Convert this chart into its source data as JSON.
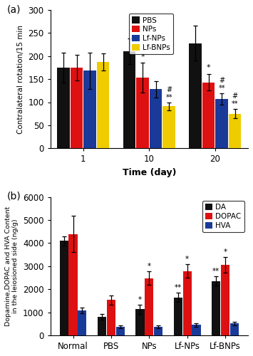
{
  "panel_a": {
    "title": "(a)",
    "groups": [
      "1",
      "10",
      "20"
    ],
    "xlabel": "Time (day)",
    "ylabel": "Contralateral rotation/15 min",
    "ylim": [
      0,
      300
    ],
    "yticks": [
      0,
      50,
      100,
      150,
      200,
      250,
      300
    ],
    "legend_labels": [
      "PBS",
      "NPs",
      "Lf-NPs",
      "Lf-BNPs"
    ],
    "bar_colors": [
      "#111111",
      "#dd1111",
      "#1a3a99",
      "#eecc00"
    ],
    "bar_values": [
      [
        175,
        175,
        168,
        187
      ],
      [
        210,
        153,
        128,
        91
      ],
      [
        228,
        143,
        107,
        75
      ]
    ],
    "bar_errors": [
      [
        33,
        28,
        40,
        18
      ],
      [
        28,
        32,
        18,
        8
      ],
      [
        38,
        18,
        13,
        10
      ]
    ]
  },
  "panel_b": {
    "title": "(b)",
    "groups": [
      "Normal",
      "PBS",
      "NPs",
      "Lf-NPs",
      "Lf-BNPs"
    ],
    "xlabel": "",
    "ylabel": "Dopamine,DOPAC and HVA Content\nin the leiosioned side (ng/g)",
    "ylim": [
      0,
      6000
    ],
    "yticks": [
      0,
      1000,
      2000,
      3000,
      4000,
      5000,
      6000
    ],
    "legend_labels": [
      "DA",
      "DOPAC",
      "HVA"
    ],
    "bar_colors": [
      "#111111",
      "#dd1111",
      "#1a3a99"
    ],
    "bar_values": [
      [
        4100,
        800,
        1130,
        1640,
        2360
      ],
      [
        4400,
        1530,
        2480,
        2790,
        3060
      ],
      [
        1070,
        360,
        380,
        460,
        520
      ]
    ],
    "bar_errors": [
      [
        200,
        130,
        200,
        200,
        200
      ],
      [
        800,
        200,
        300,
        300,
        350
      ],
      [
        120,
        60,
        55,
        75,
        80
      ]
    ]
  }
}
